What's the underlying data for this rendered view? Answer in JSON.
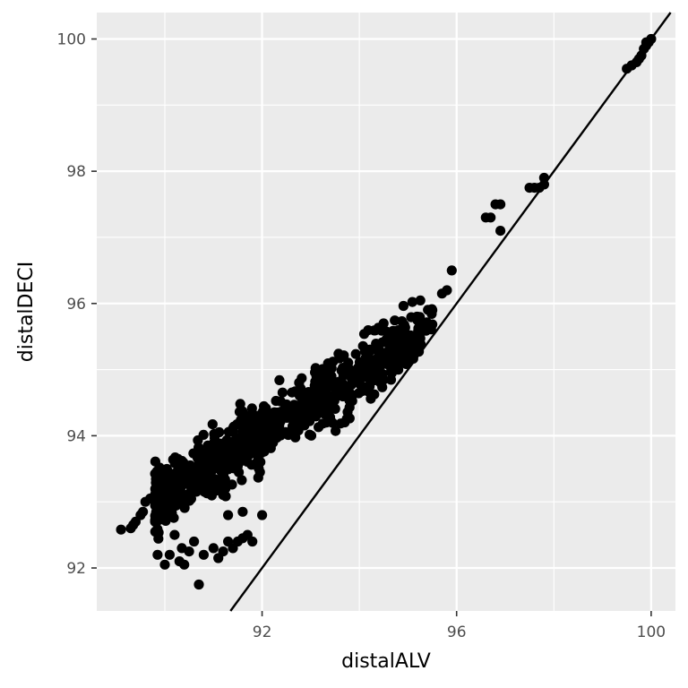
{
  "chart_data": {
    "type": "scatter",
    "title": "",
    "xlabel": "distalALV",
    "ylabel": "distalDECI",
    "xlim": [
      88.6,
      100.5
    ],
    "ylim": [
      91.35,
      100.4
    ],
    "x_ticks": [
      92,
      96,
      100
    ],
    "x_tick_labels": [
      "92",
      "96",
      "100"
    ],
    "y_ticks": [
      92,
      94,
      96,
      98,
      100
    ],
    "y_tick_labels": [
      "92",
      "94",
      "96",
      "98",
      "100"
    ],
    "grid": true,
    "legend": "none",
    "reference_line": {
      "slope": 1,
      "intercept": 0
    },
    "colors": {
      "panel": "#ebebeb",
      "grid": "#ffffff",
      "points": "#000000",
      "line": "#000000"
    },
    "points": [
      [
        89.1,
        92.58
      ],
      [
        89.3,
        92.6
      ],
      [
        89.35,
        92.65
      ],
      [
        89.4,
        92.7
      ],
      [
        89.5,
        92.8
      ],
      [
        89.55,
        92.85
      ],
      [
        89.6,
        93.0
      ],
      [
        89.7,
        93.05
      ],
      [
        89.8,
        92.7
      ],
      [
        89.85,
        92.2
      ],
      [
        90.0,
        92.05
      ],
      [
        90.1,
        92.2
      ],
      [
        90.2,
        92.5
      ],
      [
        90.3,
        92.1
      ],
      [
        90.35,
        92.3
      ],
      [
        90.4,
        92.05
      ],
      [
        90.5,
        92.25
      ],
      [
        90.6,
        92.4
      ],
      [
        90.8,
        92.2
      ],
      [
        91.0,
        92.3
      ],
      [
        91.1,
        92.15
      ],
      [
        91.2,
        92.25
      ],
      [
        91.3,
        92.4
      ],
      [
        91.4,
        92.3
      ],
      [
        91.5,
        92.4
      ],
      [
        91.6,
        92.45
      ],
      [
        91.7,
        92.5
      ],
      [
        91.8,
        92.4
      ],
      [
        92.0,
        92.8
      ],
      [
        91.3,
        92.8
      ],
      [
        91.6,
        92.85
      ],
      [
        90.7,
        91.75
      ],
      [
        95.5,
        95.9
      ],
      [
        95.7,
        96.15
      ],
      [
        95.8,
        96.2
      ],
      [
        95.9,
        96.5
      ],
      [
        96.6,
        97.3
      ],
      [
        96.7,
        97.3
      ],
      [
        96.8,
        97.5
      ],
      [
        96.9,
        97.5
      ],
      [
        96.9,
        97.1
      ],
      [
        97.5,
        97.75
      ],
      [
        97.6,
        97.75
      ],
      [
        97.7,
        97.75
      ],
      [
        97.8,
        97.8
      ],
      [
        97.8,
        97.9
      ],
      [
        99.5,
        99.55
      ],
      [
        99.6,
        99.6
      ],
      [
        99.7,
        99.65
      ],
      [
        99.75,
        99.7
      ],
      [
        99.8,
        99.75
      ],
      [
        99.85,
        99.85
      ],
      [
        99.9,
        99.9
      ],
      [
        99.95,
        99.95
      ],
      [
        100.0,
        100.0
      ],
      [
        99.9,
        99.95
      ]
    ],
    "cloud": {
      "centerline": {
        "x_start": 89.8,
        "x_end": 95.5,
        "y_start": 93.05,
        "y_end": 95.6
      },
      "halfwidth_y": 0.42,
      "count": 820,
      "seed": 7
    }
  }
}
